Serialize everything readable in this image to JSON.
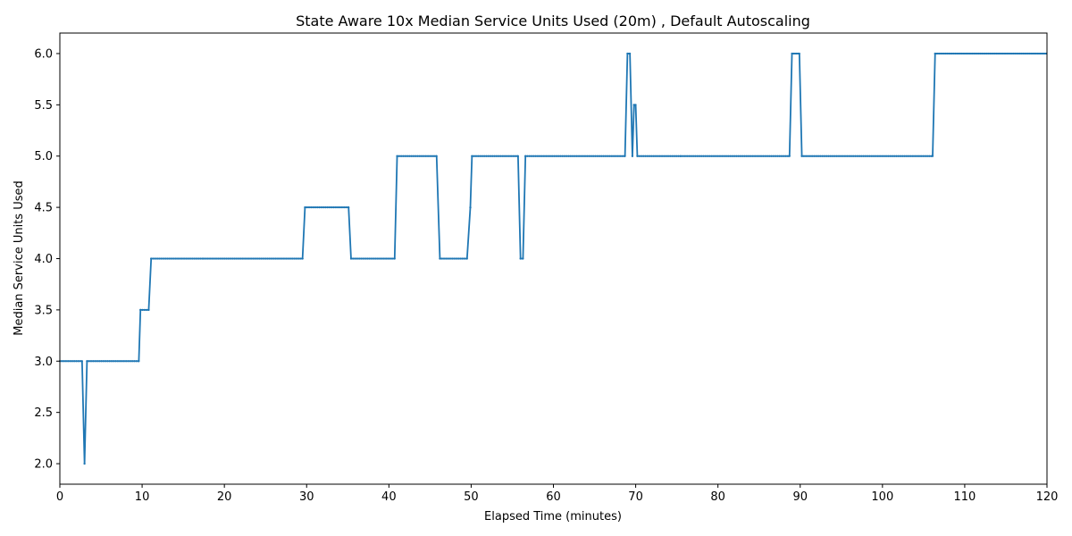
{
  "chart_data": {
    "type": "line",
    "title": "State Aware 10x Median Service Units Used (20m) , Default Autoscaling",
    "xlabel": "Elapsed Time (minutes)",
    "ylabel": "Median Service Units Used",
    "xlim": [
      0,
      120
    ],
    "ylim": [
      1.8,
      6.2
    ],
    "xticks": [
      0,
      10,
      20,
      30,
      40,
      50,
      60,
      70,
      80,
      90,
      100,
      110,
      120
    ],
    "yticks": [
      2.0,
      2.5,
      3.0,
      3.5,
      4.0,
      4.5,
      5.0,
      5.5,
      6.0
    ],
    "xtick_labels": [
      "0",
      "10",
      "20",
      "30",
      "40",
      "50",
      "60",
      "70",
      "80",
      "90",
      "100",
      "110",
      "120"
    ],
    "ytick_labels": [
      "2.0",
      "2.5",
      "3.0",
      "3.5",
      "4.0",
      "4.5",
      "5.0",
      "5.5",
      "6.0"
    ],
    "grid": false,
    "line_color": "#1f77b4",
    "marker": "dot",
    "series": [
      {
        "values": [
          [
            0,
            3.0
          ],
          [
            2.7,
            3.0
          ],
          [
            3.0,
            2.0
          ],
          [
            3.3,
            3.0
          ],
          [
            9.6,
            3.0
          ],
          [
            9.8,
            3.5
          ],
          [
            10.8,
            3.5
          ],
          [
            11.1,
            4.0
          ],
          [
            17.5,
            4.0
          ],
          [
            29.5,
            4.0
          ],
          [
            29.8,
            4.5
          ],
          [
            35.1,
            4.5
          ],
          [
            35.4,
            4.0
          ],
          [
            40.7,
            4.0
          ],
          [
            41.0,
            5.0
          ],
          [
            45.8,
            5.0
          ],
          [
            46.2,
            4.0
          ],
          [
            49.5,
            4.0
          ],
          [
            49.9,
            4.5
          ],
          [
            50.1,
            5.0
          ],
          [
            55.7,
            5.0
          ],
          [
            56.0,
            4.0
          ],
          [
            56.3,
            4.0
          ],
          [
            56.6,
            5.0
          ],
          [
            68.7,
            5.0
          ],
          [
            69.0,
            6.0
          ],
          [
            69.3,
            6.0
          ],
          [
            69.6,
            5.0
          ],
          [
            69.8,
            5.5
          ],
          [
            70.0,
            5.5
          ],
          [
            70.2,
            5.0
          ],
          [
            75.5,
            5.0
          ],
          [
            88.7,
            5.0
          ],
          [
            89.0,
            6.0
          ],
          [
            89.9,
            6.0
          ],
          [
            90.2,
            5.0
          ],
          [
            106.1,
            5.0
          ],
          [
            106.4,
            6.0
          ],
          [
            120,
            6.0
          ]
        ]
      }
    ]
  }
}
